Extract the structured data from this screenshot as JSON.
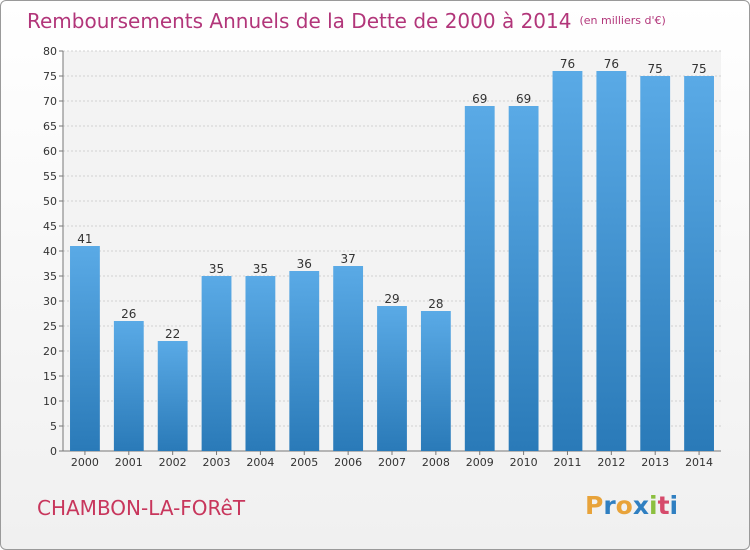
{
  "title": "Remboursements Annuels de la Dette de 2000 à 2014",
  "subtitle": "(en milliers d'€)",
  "commune": "CHAMBON-LA-FORêT",
  "logo": {
    "letters": [
      "P",
      "r",
      "o",
      "x",
      "i",
      "t",
      "i"
    ],
    "colors": [
      "#e8a33a",
      "#2f7fc1",
      "#e8a33a",
      "#2f7fc1",
      "#8cbf3f",
      "#d64a6b",
      "#2f7fc1"
    ]
  },
  "colors": {
    "bar_top": "#5aaae6",
    "bar_bottom": "#2a7ab8",
    "title": "#b2367a",
    "commune": "#c8365c"
  },
  "chart_data": {
    "type": "bar",
    "categories": [
      "2000",
      "2001",
      "2002",
      "2003",
      "2004",
      "2005",
      "2006",
      "2007",
      "2008",
      "2009",
      "2010",
      "2011",
      "2012",
      "2013",
      "2014"
    ],
    "values": [
      41,
      26,
      22,
      35,
      35,
      36,
      37,
      29,
      28,
      69,
      69,
      76,
      76,
      75,
      75
    ],
    "ylim": [
      0,
      80
    ],
    "yticks": [
      0,
      5,
      10,
      15,
      20,
      25,
      30,
      35,
      40,
      45,
      50,
      55,
      60,
      65,
      70,
      75,
      80
    ],
    "grid": true,
    "xlabel": "",
    "ylabel": ""
  }
}
